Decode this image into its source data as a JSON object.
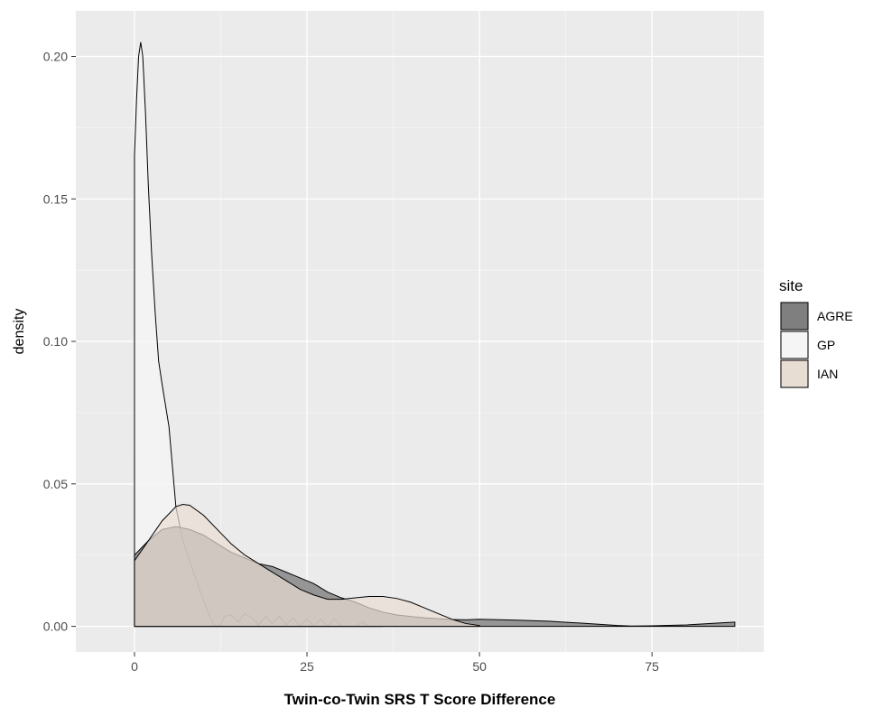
{
  "chart_data": {
    "type": "area",
    "title": "",
    "xlabel": "Twin-co-Twin SRS T Score Difference",
    "ylabel": "density",
    "xlim": [
      -8.5,
      91.2
    ],
    "ylim": [
      -0.009,
      0.216
    ],
    "x_ticks": [
      0,
      25,
      50,
      75
    ],
    "x_tick_labels": [
      "0",
      "25",
      "50",
      "75"
    ],
    "y_ticks": [
      0.0,
      0.05,
      0.1,
      0.15,
      0.2
    ],
    "y_tick_labels": [
      "0.00",
      "0.05",
      "0.10",
      "0.15",
      "0.20"
    ],
    "grid": true,
    "legend": {
      "title": "site",
      "position": "right"
    },
    "series": [
      {
        "name": "GP",
        "fill": "#f5f5f5",
        "opacity": 0.85,
        "x": [
          0,
          0.3,
          0.6,
          0.9,
          1.2,
          1.6,
          2.0,
          2.5,
          3.0,
          3.5,
          4.0,
          5.0,
          6.0,
          7.0,
          8.0,
          9.0,
          10.0,
          11.0,
          11.5,
          12.0,
          12.5,
          13.0,
          14.0,
          15.0,
          16.0,
          17.0,
          18.0,
          19.0,
          20.0,
          21.0,
          22.0,
          23.0,
          24.0,
          25.0,
          26.0,
          27.0,
          28.0,
          29.0,
          30.0,
          31.0,
          32.0,
          33.0,
          34.0,
          35.0,
          36.0
        ],
        "y": [
          0.165,
          0.185,
          0.2,
          0.205,
          0.2,
          0.18,
          0.155,
          0.13,
          0.11,
          0.093,
          0.085,
          0.07,
          0.042,
          0.03,
          0.023,
          0.016,
          0.009,
          0.003,
          0.0005,
          0.0,
          0.0005,
          0.0035,
          0.004,
          0.0015,
          0.0045,
          0.003,
          0.0005,
          0.0035,
          0.001,
          0.0035,
          0.0005,
          0.003,
          0.0,
          0.0025,
          0.0,
          0.0025,
          0.0,
          0.0025,
          0.0,
          0.0,
          0.0,
          0.0015,
          0.0,
          0.0,
          0.0
        ]
      },
      {
        "name": "AGRE",
        "fill": "#7f7f7f",
        "opacity": 0.8,
        "x": [
          0,
          2,
          4,
          6,
          8,
          10,
          12,
          14,
          16,
          18,
          20,
          22,
          24,
          26,
          28,
          30,
          32,
          34,
          36,
          38,
          40,
          42,
          44,
          46,
          48,
          50,
          55,
          60,
          65,
          70,
          72,
          75,
          80,
          85,
          87
        ],
        "y": [
          0.025,
          0.03,
          0.034,
          0.035,
          0.034,
          0.032,
          0.029,
          0.026,
          0.024,
          0.022,
          0.021,
          0.019,
          0.017,
          0.015,
          0.012,
          0.01,
          0.0085,
          0.0065,
          0.005,
          0.004,
          0.0035,
          0.003,
          0.0027,
          0.0024,
          0.0023,
          0.0025,
          0.0022,
          0.0018,
          0.0011,
          0.0003,
          0.0001,
          0.0002,
          0.0005,
          0.0012,
          0.0015
        ]
      },
      {
        "name": "IAN",
        "fill": "#e8ddd3",
        "opacity": 0.7,
        "x": [
          0,
          2,
          4,
          6,
          7,
          8,
          10,
          12,
          14,
          16,
          18,
          20,
          22,
          24,
          26,
          28,
          30,
          32,
          34,
          36,
          38,
          40,
          42,
          44,
          46,
          48,
          50
        ],
        "y": [
          0.023,
          0.03,
          0.037,
          0.042,
          0.0428,
          0.0425,
          0.039,
          0.034,
          0.029,
          0.025,
          0.022,
          0.019,
          0.016,
          0.013,
          0.011,
          0.0095,
          0.0095,
          0.01,
          0.0105,
          0.0105,
          0.0098,
          0.0085,
          0.0065,
          0.0045,
          0.0025,
          0.001,
          0.0003
        ]
      }
    ]
  },
  "legend_items": [
    {
      "label": "AGRE",
      "fill": "#7f7f7f"
    },
    {
      "label": "GP",
      "fill": "#f5f5f5"
    },
    {
      "label": "IAN",
      "fill": "#e8ddd3"
    }
  ],
  "colors": {
    "panel_background": "#ebebeb",
    "grid_major": "#ffffff",
    "outline": "#000000"
  }
}
